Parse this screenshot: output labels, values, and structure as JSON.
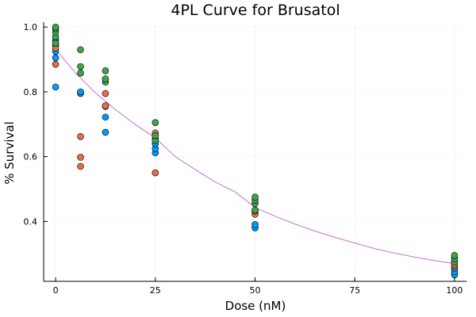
{
  "chart_data": {
    "type": "scatter",
    "title": "4PL Curve for Brusatol",
    "xlabel": "Dose (nM)",
    "ylabel": "% Survival",
    "xlim": [
      -3,
      103
    ],
    "ylim": [
      0.215,
      1.015
    ],
    "xticks": [
      0,
      25,
      50,
      75,
      100
    ],
    "yticks": [
      0.4,
      0.6,
      0.8,
      1.0
    ],
    "xtick_labels": [
      "0",
      "25",
      "50",
      "75",
      "100"
    ],
    "ytick_labels": [
      "0.4",
      "0.6",
      "0.8",
      "1.0"
    ],
    "grid": true,
    "legend": "none",
    "series": [
      {
        "color": "#009af9",
        "points": [
          [
            0,
            0.815
          ],
          [
            0,
            0.905
          ],
          [
            0,
            0.925
          ],
          [
            0,
            0.945
          ],
          [
            0,
            0.96
          ],
          [
            6.25,
            0.795
          ],
          [
            6.25,
            0.8
          ],
          [
            12.5,
            0.675
          ],
          [
            12.5,
            0.722
          ],
          [
            12.5,
            0.755
          ],
          [
            25,
            0.612
          ],
          [
            25,
            0.625
          ],
          [
            25,
            0.64
          ],
          [
            50,
            0.38
          ],
          [
            50,
            0.39
          ],
          [
            100,
            0.235
          ],
          [
            100,
            0.245
          ],
          [
            100,
            0.255
          ]
        ]
      },
      {
        "color": "#e26f46",
        "points": [
          [
            0,
            0.885
          ],
          [
            0,
            0.935
          ],
          [
            6.25,
            0.57
          ],
          [
            6.25,
            0.598
          ],
          [
            6.25,
            0.662
          ],
          [
            12.5,
            0.757
          ],
          [
            12.5,
            0.795
          ],
          [
            25,
            0.55
          ],
          [
            25,
            0.655
          ],
          [
            25,
            0.673
          ],
          [
            50,
            0.422
          ],
          [
            50,
            0.432
          ],
          [
            100,
            0.262
          ],
          [
            100,
            0.268
          ]
        ]
      },
      {
        "color": "#3da44d",
        "points": [
          [
            0,
            0.95
          ],
          [
            0,
            0.97
          ],
          [
            0,
            0.985
          ],
          [
            0,
            0.995
          ],
          [
            0,
            1.0
          ],
          [
            6.25,
            0.858
          ],
          [
            6.25,
            0.878
          ],
          [
            6.25,
            0.93
          ],
          [
            12.5,
            0.83
          ],
          [
            12.5,
            0.84
          ],
          [
            12.5,
            0.865
          ],
          [
            25,
            0.65
          ],
          [
            25,
            0.665
          ],
          [
            25,
            0.705
          ],
          [
            50,
            0.435
          ],
          [
            50,
            0.455
          ],
          [
            50,
            0.465
          ],
          [
            50,
            0.475
          ],
          [
            100,
            0.275
          ],
          [
            100,
            0.285
          ],
          [
            100,
            0.295
          ]
        ]
      }
    ],
    "curve": {
      "color": "#c271d2",
      "points": [
        [
          0,
          0.932
        ],
        [
          5,
          0.858
        ],
        [
          10,
          0.797
        ],
        [
          15,
          0.745
        ],
        [
          20,
          0.699
        ],
        [
          25,
          0.658
        ],
        [
          30,
          0.6
        ],
        [
          35,
          0.56
        ],
        [
          40,
          0.522
        ],
        [
          45,
          0.491
        ],
        [
          50,
          0.443
        ],
        [
          55,
          0.416
        ],
        [
          60,
          0.392
        ],
        [
          65,
          0.37
        ],
        [
          70,
          0.351
        ],
        [
          75,
          0.333
        ],
        [
          80,
          0.316
        ],
        [
          85,
          0.302
        ],
        [
          90,
          0.29
        ],
        [
          95,
          0.279
        ],
        [
          100,
          0.27
        ]
      ]
    }
  }
}
